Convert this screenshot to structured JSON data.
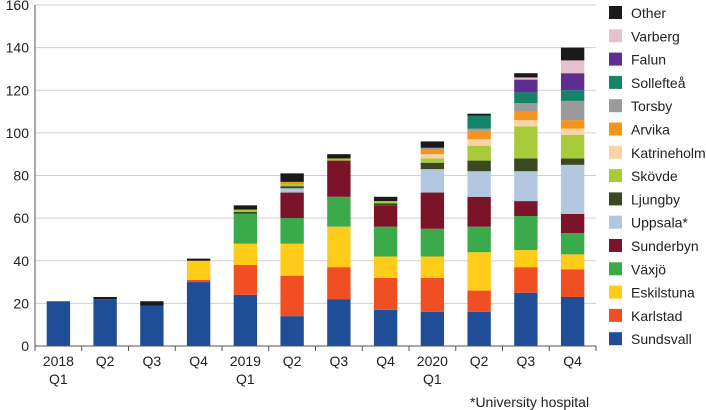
{
  "chart_data": {
    "type": "stacked-bar",
    "title": "",
    "xlabel": "",
    "ylabel": "",
    "ylim": [
      0,
      160
    ],
    "yticks": [
      0,
      20,
      40,
      60,
      80,
      100,
      120,
      140,
      160
    ],
    "grid": true,
    "legend_position": "right",
    "categories": [
      {
        "top": "2018",
        "bottom": "Q1"
      },
      {
        "top": "Q2",
        "bottom": ""
      },
      {
        "top": "Q3",
        "bottom": ""
      },
      {
        "top": "Q4",
        "bottom": ""
      },
      {
        "top": "2019",
        "bottom": "Q1"
      },
      {
        "top": "Q2",
        "bottom": ""
      },
      {
        "top": "Q3",
        "bottom": ""
      },
      {
        "top": "Q4",
        "bottom": ""
      },
      {
        "top": "2020",
        "bottom": "Q1"
      },
      {
        "top": "Q2",
        "bottom": ""
      },
      {
        "top": "Q3",
        "bottom": ""
      },
      {
        "top": "Q4",
        "bottom": ""
      }
    ],
    "series": [
      {
        "name": "Sundsvall",
        "color": "#1f4e96",
        "values": [
          21,
          22,
          19,
          30,
          24,
          14,
          22,
          17,
          16,
          16,
          25,
          23
        ]
      },
      {
        "name": "Karlstad",
        "color": "#f04e23",
        "values": [
          0,
          0,
          0,
          1,
          14,
          19,
          15,
          15,
          16,
          10,
          12,
          13
        ]
      },
      {
        "name": "Eskilstuna",
        "color": "#ffcc1a",
        "values": [
          0,
          0,
          0,
          9,
          10,
          15,
          19,
          10,
          10,
          18,
          8,
          7
        ]
      },
      {
        "name": "Växjö",
        "color": "#3aaa4a",
        "values": [
          0,
          0,
          0,
          0,
          14,
          12,
          14,
          14,
          13,
          12,
          16,
          10
        ]
      },
      {
        "name": "Sunderbyn",
        "color": "#7b1428",
        "values": [
          0,
          0,
          0,
          0,
          0,
          12,
          17,
          10,
          17,
          14,
          7,
          9
        ]
      },
      {
        "name": "Uppsala*",
        "color": "#b4c7e0",
        "values": [
          0,
          0,
          0,
          0,
          0,
          2,
          0,
          0,
          11,
          12,
          14,
          23
        ]
      },
      {
        "name": "Ljungby",
        "color": "#3a4a1e",
        "values": [
          0,
          0,
          0,
          0,
          1,
          1,
          0,
          1,
          3,
          5,
          6,
          3
        ]
      },
      {
        "name": "Skövde",
        "color": "#a8cb3c",
        "values": [
          0,
          0,
          0,
          0,
          1,
          1,
          1,
          1,
          2,
          7,
          15,
          11
        ]
      },
      {
        "name": "Katrineholm",
        "color": "#fad3a6",
        "values": [
          0,
          0,
          0,
          0,
          0,
          0,
          0,
          0,
          2,
          3,
          3,
          3
        ]
      },
      {
        "name": "Arvika",
        "color": "#f7941d",
        "values": [
          0,
          0,
          0,
          0,
          0,
          1,
          0,
          0,
          2,
          4,
          4,
          4
        ]
      },
      {
        "name": "Torsby",
        "color": "#9a9a9a",
        "values": [
          0,
          0,
          0,
          0,
          0,
          0,
          0,
          0,
          1,
          1,
          4,
          9
        ]
      },
      {
        "name": "Sollefteå",
        "color": "#158368",
        "values": [
          0,
          0,
          0,
          0,
          0,
          0,
          0,
          0,
          0,
          6,
          5,
          5
        ]
      },
      {
        "name": "Falun",
        "color": "#5d2d91",
        "values": [
          0,
          0,
          0,
          0,
          0,
          0,
          0,
          0,
          0,
          0,
          6,
          8
        ]
      },
      {
        "name": "Varberg",
        "color": "#e6c1cf",
        "values": [
          0,
          0,
          0,
          0,
          0,
          0,
          0,
          0,
          0,
          0,
          1,
          6
        ]
      },
      {
        "name": "Other",
        "color": "#1a1a1a",
        "values": [
          0,
          1,
          2,
          1,
          2,
          4,
          2,
          2,
          3,
          1,
          2,
          6
        ]
      }
    ],
    "legend_order": [
      "Other",
      "Varberg",
      "Falun",
      "Sollefteå",
      "Torsby",
      "Arvika",
      "Katrineholm",
      "Skövde",
      "Ljungby",
      "Uppsala*",
      "Sunderbyn",
      "Växjö",
      "Eskilstuna",
      "Karlstad",
      "Sundsvall"
    ]
  },
  "footnote": "*University hospital"
}
